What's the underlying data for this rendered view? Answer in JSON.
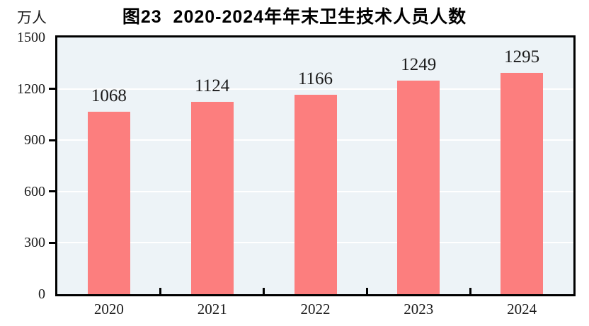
{
  "chart_data": {
    "type": "bar",
    "title": "图23  2020-2024年年末卫生技术人员人数",
    "unit_label": "万人",
    "xlabel": "",
    "ylabel": "万人",
    "categories": [
      "2020",
      "2021",
      "2022",
      "2023",
      "2024"
    ],
    "values": [
      1068,
      1124,
      1166,
      1249,
      1295
    ],
    "ylim": [
      0,
      1500
    ],
    "yticks": [
      0,
      300,
      600,
      900,
      1200,
      1500
    ],
    "grid": "horizontal",
    "legend": "none",
    "colors": {
      "bar": "#fc7e7e",
      "plot_background": "#edf3f7",
      "gridline": "#ffffff",
      "axis": "#000000",
      "text": "#1a1a1a",
      "page_background": "#ffffff"
    }
  }
}
